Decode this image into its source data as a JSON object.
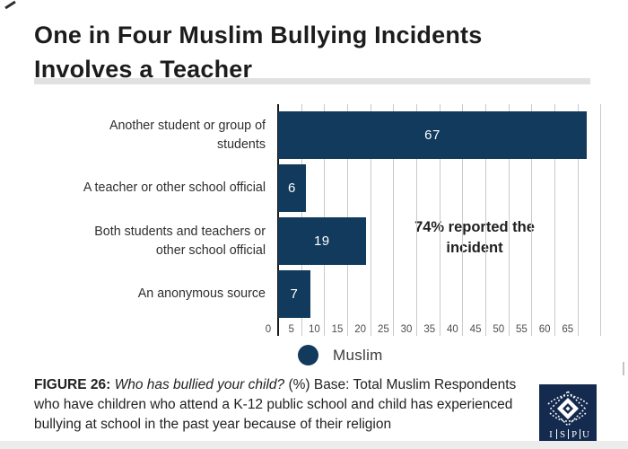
{
  "page": {
    "title_line1": "One in Four Muslim Bullying Incidents",
    "title_line2": "Involves a Teacher"
  },
  "chart_data": {
    "type": "bar",
    "orientation": "horizontal",
    "title": "One in Four Muslim Bullying Incidents Involves a Teacher",
    "categories": [
      "Another student or group of\nstudents",
      "A teacher or other school official",
      "Both students and teachers or\nother school official",
      "An anonymous source"
    ],
    "values": [
      67,
      6,
      19,
      7
    ],
    "series_name": "Muslim",
    "annotation": "74% reported the incident",
    "x_ticks": [
      0,
      5,
      10,
      15,
      20,
      25,
      30,
      35,
      40,
      45,
      50,
      55,
      60,
      65
    ],
    "xlim": [
      0,
      74
    ],
    "grid": true,
    "bar_color": "#113a5c",
    "legend_position": "bottom"
  },
  "legend": {
    "label": "Muslim",
    "marker_color": "#113a5c"
  },
  "caption": {
    "figure_label": "FIGURE 26: ",
    "question_italic": "Who has bullied your child? ",
    "rest": "(%) Base: Total Muslim Respondents who have children who attend a K-12 public school and child has experienced bullying at school in the past year because of their religion"
  },
  "logo": {
    "letters": [
      "I",
      "S",
      "P",
      "U"
    ],
    "background_color": "#142a4e"
  }
}
